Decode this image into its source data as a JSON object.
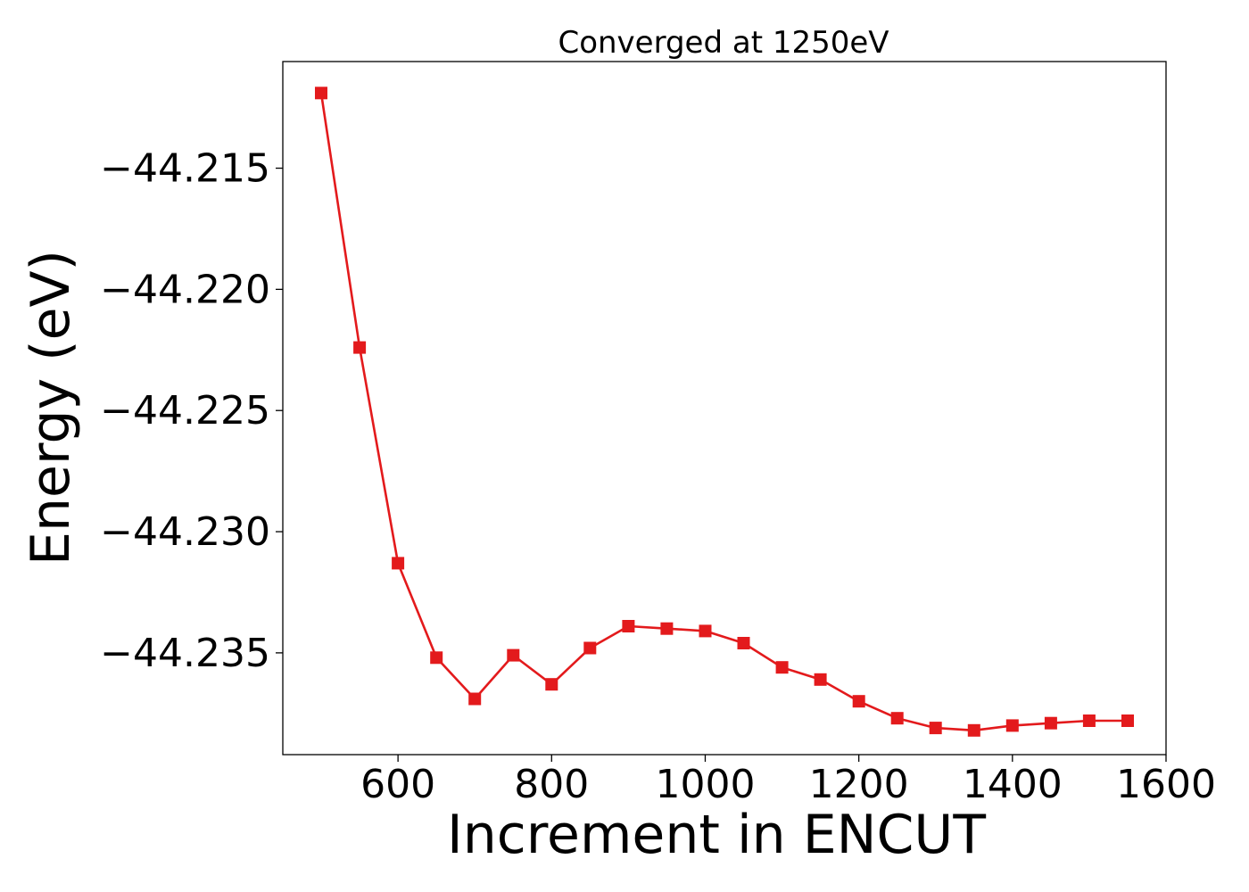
{
  "chart_data": {
    "type": "line",
    "title": "Converged at 1250eV",
    "xlabel": "Increment in ENCUT",
    "ylabel": "Energy (eV)",
    "xlim": [
      450,
      1600
    ],
    "ylim": [
      -44.2392,
      -44.2106
    ],
    "xticks": [
      600,
      800,
      1000,
      1200,
      1400,
      1600
    ],
    "yticks": [
      -44.215,
      -44.22,
      -44.225,
      -44.23,
      -44.235
    ],
    "ytick_labels": [
      "−44.215",
      "−44.220",
      "−44.225",
      "−44.230",
      "−44.235"
    ],
    "grid": false,
    "legend": "none",
    "series": [
      {
        "color": "#e31a1c",
        "marker": "square",
        "x": [
          500,
          550,
          600,
          650,
          700,
          750,
          800,
          850,
          900,
          950,
          1000,
          1050,
          1100,
          1150,
          1200,
          1250,
          1300,
          1350,
          1400,
          1450,
          1500,
          1550
        ],
        "y": [
          -44.2119,
          -44.2224,
          -44.2313,
          -44.2352,
          -44.2369,
          -44.2351,
          -44.2363,
          -44.2348,
          -44.2339,
          -44.234,
          -44.2341,
          -44.2346,
          -44.2356,
          -44.2361,
          -44.237,
          -44.2377,
          -44.2381,
          -44.2382,
          -44.238,
          -44.2379,
          -44.2378,
          -44.2378
        ]
      }
    ]
  }
}
